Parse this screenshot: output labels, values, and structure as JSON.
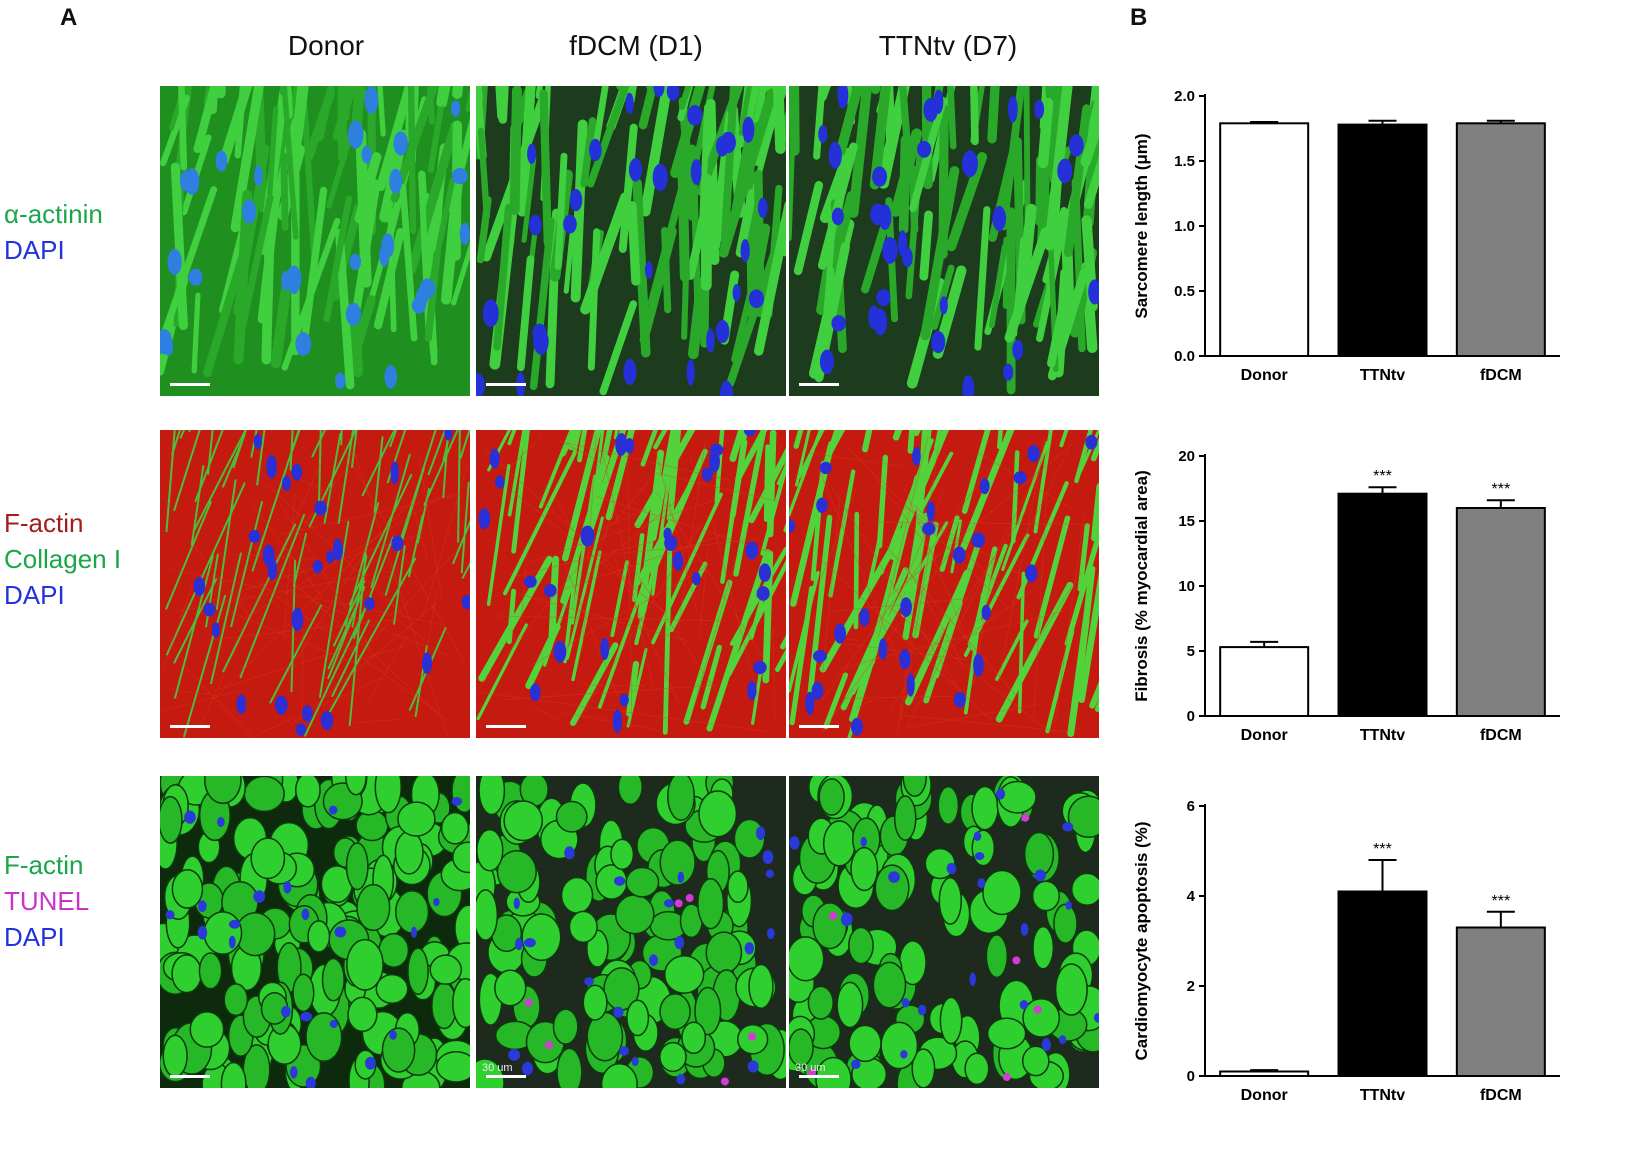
{
  "panel_a_label": "A",
  "panel_b_label": "B",
  "columns": [
    "Donor",
    "fDCM (D1)",
    "TTNtv (D7)"
  ],
  "rows": [
    {
      "labels": [
        {
          "text": "α-actinin",
          "color": "#1aa64a"
        },
        {
          "text": "DAPI",
          "color": "#2233dd"
        }
      ],
      "stain": "green-blue"
    },
    {
      "labels": [
        {
          "text": "F-actin",
          "color": "#a51c1c"
        },
        {
          "text": "Collagen I",
          "color": "#1aa64a"
        },
        {
          "text": "DAPI",
          "color": "#2233dd"
        }
      ],
      "stain": "red-green-blue"
    },
    {
      "labels": [
        {
          "text": "F-actin",
          "color": "#1aa64a"
        },
        {
          "text": "TUNEL",
          "color": "#cc33cc"
        },
        {
          "text": "DAPI",
          "color": "#2233dd"
        }
      ],
      "stain": "green-magenta-blue"
    }
  ],
  "scale_bar_text": "30 um",
  "chart_data": [
    {
      "type": "bar",
      "categories": [
        "Donor",
        "TTNtv",
        "fDCM"
      ],
      "values": [
        1.79,
        1.78,
        1.79
      ],
      "errors": [
        0.01,
        0.03,
        0.02
      ],
      "colors": [
        "#ffffff",
        "#000000",
        "#808080"
      ],
      "ylabel": "Sarcomere length (μm)",
      "ylim": [
        0,
        2.0
      ],
      "yticks": [
        "0.0",
        "0.5",
        "1.0",
        "1.5",
        "2.0"
      ],
      "significance": [
        "",
        "",
        ""
      ]
    },
    {
      "type": "bar",
      "categories": [
        "Donor",
        "TTNtv",
        "fDCM"
      ],
      "values": [
        5.3,
        17.1,
        16.0
      ],
      "errors": [
        0.4,
        0.5,
        0.6
      ],
      "colors": [
        "#ffffff",
        "#000000",
        "#808080"
      ],
      "ylabel": "Fibrosis (% myocardial area)",
      "ylim": [
        0,
        20
      ],
      "yticks": [
        "0",
        "5",
        "10",
        "15",
        "20"
      ],
      "significance": [
        "",
        "***",
        "***"
      ]
    },
    {
      "type": "bar",
      "categories": [
        "Donor",
        "TTNtv",
        "fDCM"
      ],
      "values": [
        0.1,
        4.1,
        3.3
      ],
      "errors": [
        0.03,
        0.7,
        0.35
      ],
      "colors": [
        "#ffffff",
        "#000000",
        "#808080"
      ],
      "ylabel": "Cardiomyocyte apoptosis (%)",
      "ylim": [
        0,
        6
      ],
      "yticks": [
        "0",
        "2",
        "4",
        "6"
      ],
      "significance": [
        "",
        "***",
        "***"
      ]
    }
  ]
}
